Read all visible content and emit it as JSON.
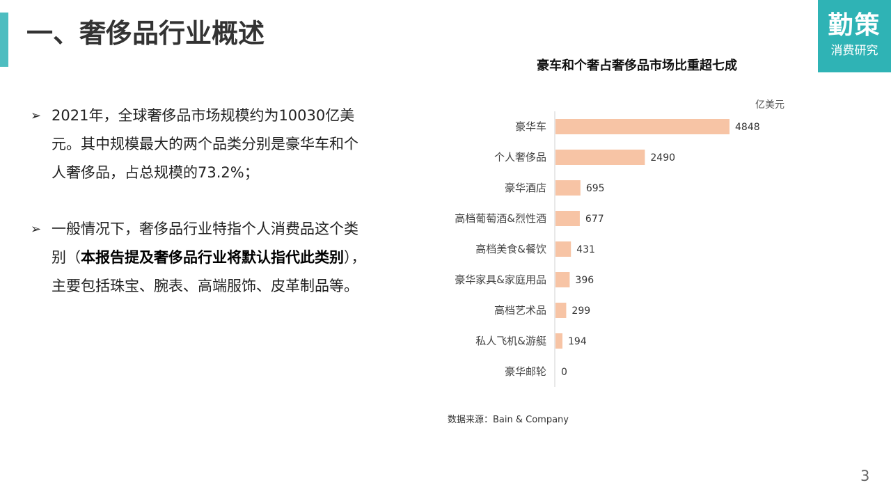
{
  "header": {
    "title": "一、奢侈品行业概述"
  },
  "logo": {
    "main": "勤策",
    "sub": "消费研究"
  },
  "bullets": [
    {
      "arrow": "➢",
      "text": "2021年，全球奢侈品市场规模约为10030亿美元。其中规模最大的两个品类分别是豪华车和个人奢侈品，占总规模的73.2%；"
    },
    {
      "arrow": "➢",
      "text_before": "一般情况下，奢侈品行业特指个人消费品这个类别（",
      "text_bold": "本报告提及奢侈品行业将默认指代此类别",
      "text_after": "），主要包括珠宝、腕表、高端服饰、皮革制品等。"
    }
  ],
  "chart_data": {
    "type": "bar",
    "orientation": "horizontal",
    "title": "豪车和个奢占奢侈品市场比重超七成",
    "unit_label": "亿美元",
    "categories": [
      "豪华车",
      "个人奢侈品",
      "豪华酒店",
      "高档葡萄酒&烈性酒",
      "高档美食&餐饮",
      "豪华家具&家庭用品",
      "高档艺术品",
      "私人飞机&游艇",
      "豪华邮轮"
    ],
    "values": [
      4848,
      2490,
      695,
      677,
      431,
      396,
      299,
      194,
      0
    ],
    "bar_color": "#f7c4a5",
    "grid": false,
    "legend": "none"
  },
  "source": "数据来源：Bain & Company",
  "page_number": "3"
}
